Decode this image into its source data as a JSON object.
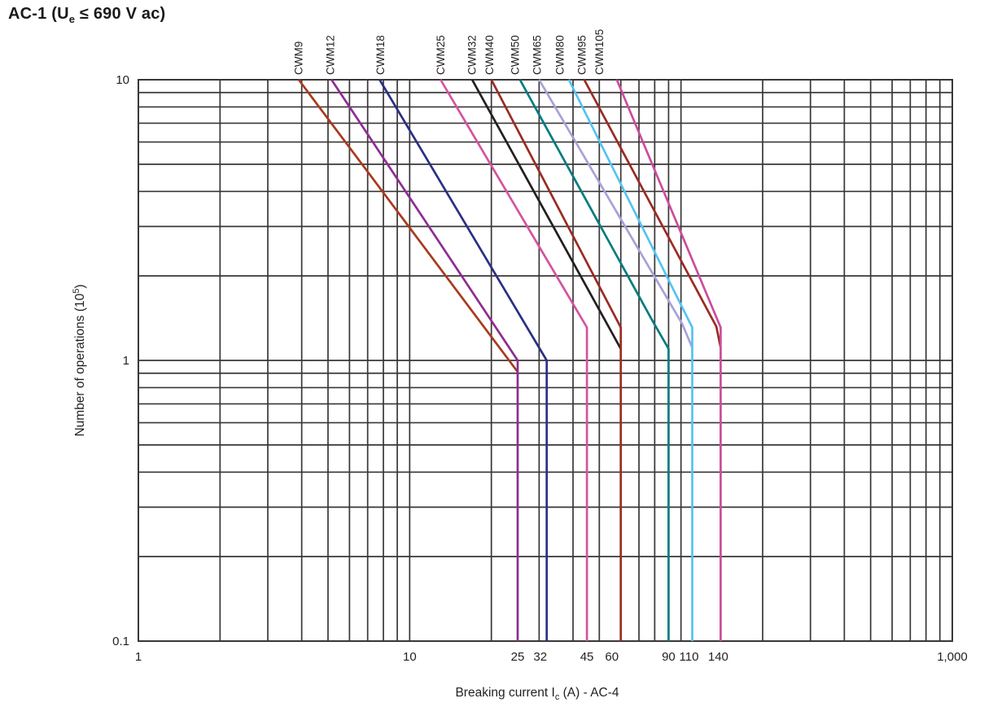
{
  "page": {
    "title": {
      "prefix": "AC-1 (U",
      "sub": "e",
      "suffix": " ≤ 690 V ac)"
    }
  },
  "chart_data": {
    "type": "line",
    "title": "AC-1 (Ue ≤ 690 V ac)",
    "x_scale": "log",
    "y_scale": "log",
    "xlim": [
      1,
      1000
    ],
    "ylim": [
      0.1,
      10
    ],
    "xlabel": {
      "prefix": "Breaking current I",
      "sub": "c",
      "suffix": " (A) - AC-4"
    },
    "ylabel": {
      "prefix": "Number of operations (10",
      "sup": "5",
      "suffix": ")"
    },
    "grid": {
      "show": true,
      "minor": true,
      "color": "#3A3637"
    },
    "text_color": "#231F20",
    "background": "#FFFFFF",
    "legend_position": "top-labels-rotated",
    "x_ticks": [
      {
        "v": 1,
        "label": "1"
      },
      {
        "v": 10,
        "label": "10"
      },
      {
        "v": 25,
        "label": "25"
      },
      {
        "v": 32,
        "label": "32",
        "dx": -8
      },
      {
        "v": 45,
        "label": "45"
      },
      {
        "v": 60,
        "label": "60",
        "dx": -11
      },
      {
        "v": 90,
        "label": "90"
      },
      {
        "v": 110,
        "label": "110",
        "dx": -4
      },
      {
        "v": 140,
        "label": "140",
        "dx": -3
      },
      {
        "v": 1000,
        "label": "1,000"
      }
    ],
    "y_ticks": [
      {
        "v": 10,
        "label": "10"
      },
      {
        "v": 1,
        "label": "1"
      },
      {
        "v": 0.1,
        "label": "0.1"
      }
    ],
    "series": [
      {
        "name": "CWM9",
        "color": "#A83A1E",
        "label_x": 3.9,
        "points": [
          [
            3.9,
            10
          ],
          [
            25,
            0.91
          ]
        ]
      },
      {
        "name": "CWM12",
        "color": "#8E2D93",
        "label_x": 5.1,
        "points": [
          [
            5.15,
            10
          ],
          [
            25,
            1.0
          ],
          [
            25,
            0.1
          ]
        ]
      },
      {
        "name": "CWM18",
        "color": "#2A2F85",
        "label_x": 7.8,
        "points": [
          [
            7.75,
            10
          ],
          [
            32,
            1.0
          ],
          [
            32,
            0.1
          ]
        ]
      },
      {
        "name": "CWM25",
        "color": "#D4539F",
        "label_x": 13,
        "points": [
          [
            13,
            10
          ],
          [
            45,
            1.31
          ],
          [
            45,
            0.1
          ]
        ]
      },
      {
        "name": "CWM32",
        "color": "#231F20",
        "label_x": 17,
        "points": [
          [
            17,
            10
          ],
          [
            60,
            1.1
          ]
        ]
      },
      {
        "name": "CWM40",
        "color": "#9B2B22",
        "label_x": 19.7,
        "points": [
          [
            20,
            10
          ],
          [
            60,
            1.31
          ],
          [
            60,
            0.1
          ]
        ]
      },
      {
        "name": "CWM50",
        "color": "#007C7E",
        "label_x": 24.5,
        "points": [
          [
            25.5,
            10
          ],
          [
            78,
            1.4
          ],
          [
            90,
            1.1
          ],
          [
            90,
            0.1
          ]
        ]
      },
      {
        "name": "CWM65",
        "color": "#A9A1D6",
        "label_x": 29.5,
        "points": [
          [
            30,
            10
          ],
          [
            101,
            1.35
          ],
          [
            110,
            1.11
          ]
        ]
      },
      {
        "name": "CWM80",
        "color": "#55C4F1",
        "label_x": 35.8,
        "points": [
          [
            38.6,
            10
          ],
          [
            110,
            1.31
          ],
          [
            110,
            0.1
          ]
        ]
      },
      {
        "name": "CWM95",
        "color": "#9B2B22",
        "label_x": 43.2,
        "points": [
          [
            44,
            10
          ],
          [
            135,
            1.32
          ],
          [
            140,
            1.11
          ]
        ]
      },
      {
        "name": "CWM105",
        "color": "#CB4D9C",
        "label_x": 50,
        "points": [
          [
            58,
            10
          ],
          [
            140,
            1.31
          ],
          [
            140,
            0.1
          ]
        ]
      }
    ]
  }
}
